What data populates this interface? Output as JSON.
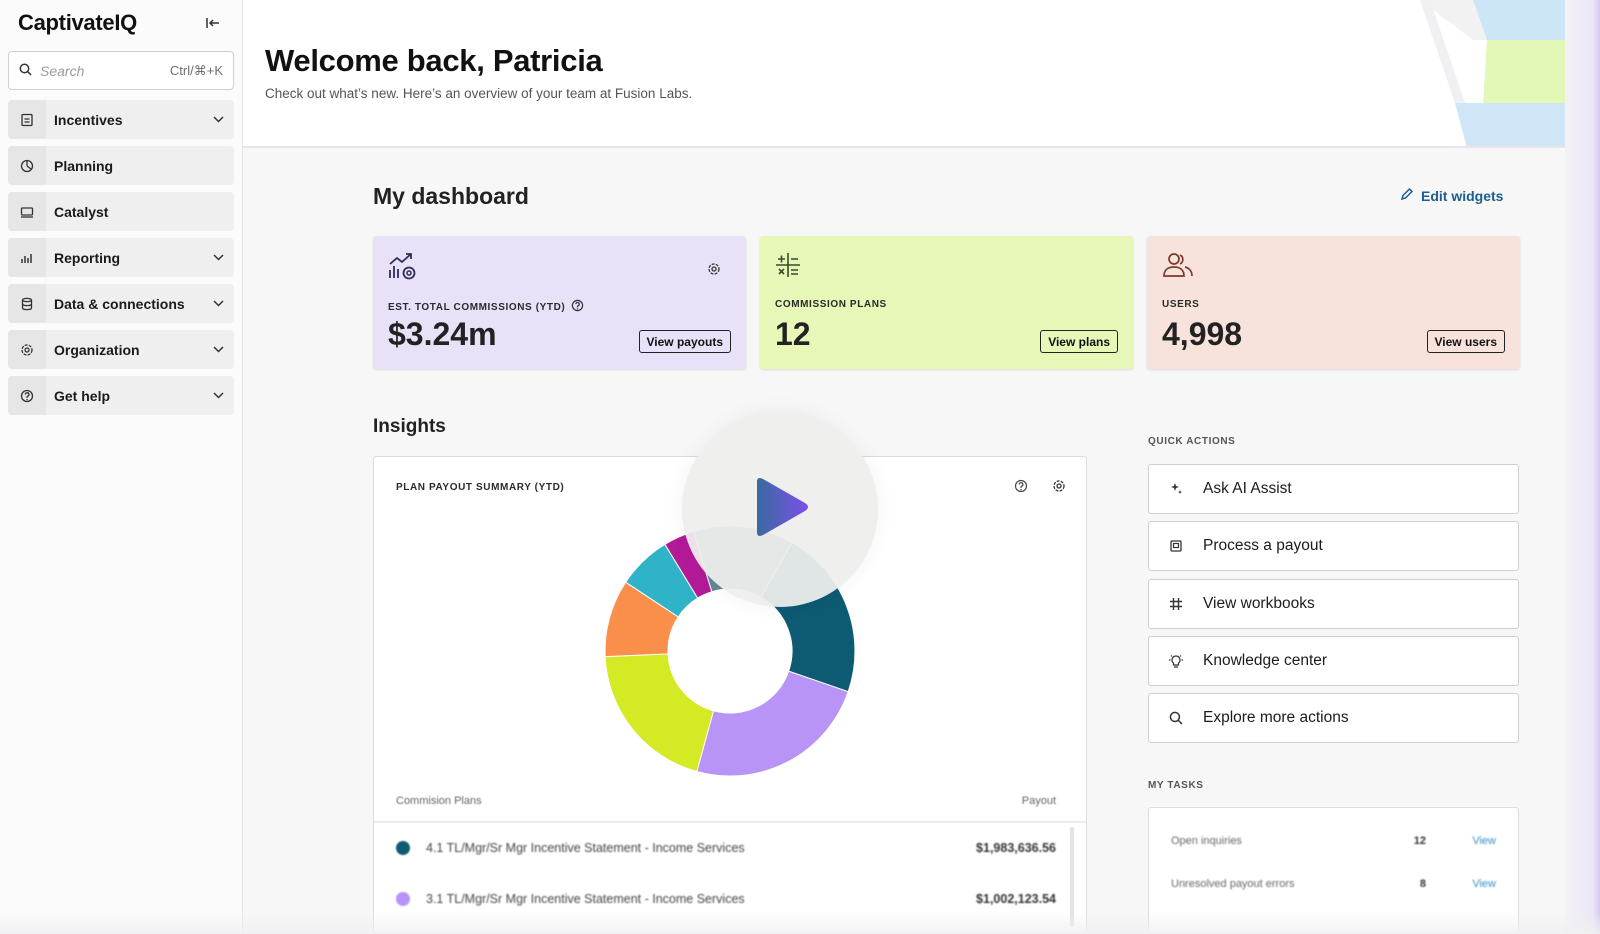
{
  "app": {
    "name": "CaptivateIQ"
  },
  "search": {
    "placeholder": "Search",
    "shortcut": "Ctrl/⌘+K"
  },
  "sidebar": {
    "items": [
      {
        "label": "Incentives",
        "icon": "incentives-icon",
        "expandable": true
      },
      {
        "label": "Planning",
        "icon": "planning-icon",
        "expandable": false
      },
      {
        "label": "Catalyst",
        "icon": "catalyst-icon",
        "expandable": false
      },
      {
        "label": "Reporting",
        "icon": "reporting-icon",
        "expandable": true
      },
      {
        "label": "Data & connections",
        "icon": "database-icon",
        "expandable": true
      },
      {
        "label": "Organization",
        "icon": "gear-icon",
        "expandable": true
      },
      {
        "label": "Get help",
        "icon": "help-icon",
        "expandable": true
      }
    ]
  },
  "header": {
    "title": "Welcome back, Patricia",
    "subtitle": "Check out what’s new. Here’s an overview of your team at Fusion Labs."
  },
  "dashboard": {
    "title": "My dashboard",
    "edit_label": "Edit widgets",
    "cards": [
      {
        "label": "EST. TOTAL COMMISSIONS (YTD)",
        "value": "$3.24m",
        "button": "View payouts",
        "color": "#e9e1f8"
      },
      {
        "label": "COMMISSION PLANS",
        "value": "12",
        "button": "View plans",
        "color": "#e6f7b8"
      },
      {
        "label": "USERS",
        "value": "4,998",
        "button": "View users",
        "color": "#f7e3dc"
      }
    ]
  },
  "insights": {
    "title": "Insights",
    "panel_title": "PLAN PAYOUT SUMMARY (YTD)",
    "col_plans": "Commision Plans",
    "col_payout": "Payout",
    "rows": [
      {
        "name": "4.1 TL/Mgr/Sr Mgr Incentive Statement - Income Services",
        "amount": "$1,983,636.56",
        "color": "#0d5a73"
      },
      {
        "name": "3.1 TL/Mgr/Sr Mgr Incentive Statement - Income Services",
        "amount": "$1,002,123.54",
        "color": "#b794f6"
      }
    ],
    "donut": [
      {
        "color": "#0d5a73",
        "value": 22
      },
      {
        "color": "#b794f6",
        "value": 24
      },
      {
        "color": "#d4ea24",
        "value": 20
      },
      {
        "color": "#f98f4b",
        "value": 10
      },
      {
        "color": "#2fb3c8",
        "value": 7
      },
      {
        "color": "#b41a98",
        "value": 4
      },
      {
        "color": "#5e8a94",
        "value": 13
      }
    ]
  },
  "quick_actions": {
    "title": "QUICK ACTIONS",
    "items": [
      {
        "label": "Ask AI Assist",
        "icon": "sparkle-icon"
      },
      {
        "label": "Process a payout",
        "icon": "payout-icon"
      },
      {
        "label": "View workbooks",
        "icon": "grid-icon"
      },
      {
        "label": "Knowledge center",
        "icon": "lightbulb-icon"
      },
      {
        "label": "Explore more actions",
        "icon": "search-icon"
      }
    ]
  },
  "tasks": {
    "title": "MY TASKS",
    "rows": [
      {
        "name": "Open inquiries",
        "count": "12",
        "action": "View"
      },
      {
        "name": "Unresolved payout errors",
        "count": "8",
        "action": "View"
      }
    ]
  }
}
